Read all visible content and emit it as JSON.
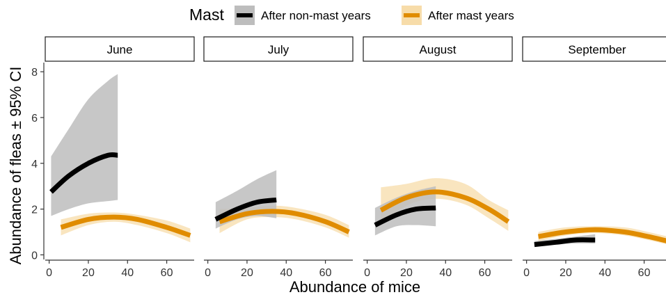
{
  "chart_data": {
    "type": "line",
    "legend": {
      "title": "Mast",
      "position": "top",
      "entries": [
        {
          "name": "After non-mast years",
          "color": "#000000",
          "ribbon": "#bdbdbd"
        },
        {
          "name": "After mast years",
          "color": "#e08c00",
          "ribbon": "#f7dca9"
        }
      ]
    },
    "xlabel": "Abundance of mice",
    "ylabel": "Abundance of fleas ± 95% CI",
    "xlim": [
      -2,
      74
    ],
    "ylim": [
      -0.2,
      8.4
    ],
    "xticks": [
      0,
      20,
      40,
      60
    ],
    "yticks": [
      0,
      2,
      4,
      6,
      8
    ],
    "grid": false,
    "facets": [
      {
        "title": "June",
        "series": [
          {
            "name": "After non-mast years",
            "color": "#000000",
            "ribbon_color": "#bdbdbd",
            "x": [
              1,
              10,
              20,
              30,
              35
            ],
            "y": [
              2.75,
              3.45,
              4.0,
              4.35,
              4.35
            ],
            "lower": [
              1.7,
              2.0,
              2.25,
              2.35,
              2.4
            ],
            "upper": [
              4.3,
              5.5,
              6.8,
              7.6,
              7.9
            ]
          },
          {
            "name": "After mast years",
            "color": "#e08c00",
            "ribbon_color": "#f7dca9",
            "x": [
              6,
              20,
              33,
              45,
              60,
              72
            ],
            "y": [
              1.2,
              1.55,
              1.65,
              1.55,
              1.2,
              0.85
            ],
            "lower": [
              0.85,
              1.3,
              1.45,
              1.3,
              0.95,
              0.55
            ],
            "upper": [
              1.55,
              1.8,
              1.85,
              1.75,
              1.5,
              1.15
            ]
          }
        ]
      },
      {
        "title": "July",
        "series": [
          {
            "name": "After non-mast years",
            "color": "#000000",
            "ribbon_color": "#bdbdbd",
            "x": [
              4,
              15,
              25,
              35
            ],
            "y": [
              1.55,
              2.0,
              2.3,
              2.4
            ],
            "lower": [
              1.15,
              1.55,
              1.7,
              1.6
            ],
            "upper": [
              2.3,
              2.8,
              3.3,
              3.7
            ]
          },
          {
            "name": "After mast years",
            "color": "#e08c00",
            "ribbon_color": "#f7dca9",
            "x": [
              6,
              20,
              33,
              45,
              60,
              72
            ],
            "y": [
              1.45,
              1.8,
              1.9,
              1.8,
              1.45,
              1.0
            ],
            "lower": [
              0.95,
              1.55,
              1.65,
              1.55,
              1.2,
              0.75
            ],
            "upper": [
              2.0,
              2.05,
              2.15,
              2.05,
              1.75,
              1.3
            ]
          }
        ]
      },
      {
        "title": "August",
        "series": [
          {
            "name": "After non-mast years",
            "color": "#000000",
            "ribbon_color": "#bdbdbd",
            "x": [
              4,
              15,
              25,
              35
            ],
            "y": [
              1.3,
              1.75,
              2.0,
              2.05
            ],
            "lower": [
              0.85,
              1.25,
              1.3,
              1.25
            ],
            "upper": [
              2.05,
              2.5,
              2.8,
              3.0
            ]
          },
          {
            "name": "After mast years",
            "color": "#e08c00",
            "ribbon_color": "#f7dca9",
            "x": [
              7,
              20,
              35,
              50,
              62,
              72
            ],
            "y": [
              1.95,
              2.5,
              2.75,
              2.5,
              2.0,
              1.45
            ],
            "lower": [
              1.3,
              2.15,
              2.45,
              2.2,
              1.6,
              1.05
            ],
            "upper": [
              2.95,
              3.1,
              3.35,
              3.1,
              2.4,
              1.95
            ]
          }
        ]
      },
      {
        "title": "September",
        "series": [
          {
            "name": "After non-mast years",
            "color": "#000000",
            "ribbon_color": "#bdbdbd",
            "x": [
              4,
              15,
              25,
              35
            ],
            "y": [
              0.45,
              0.55,
              0.65,
              0.65
            ],
            "lower": [
              0.35,
              0.45,
              0.5,
              0.5
            ],
            "upper": [
              0.6,
              0.7,
              0.8,
              0.9
            ]
          },
          {
            "name": "After mast years",
            "color": "#e08c00",
            "ribbon_color": "#f7dca9",
            "x": [
              6,
              20,
              35,
              50,
              62,
              72
            ],
            "y": [
              0.8,
              1.0,
              1.1,
              1.0,
              0.8,
              0.6
            ],
            "lower": [
              0.6,
              0.85,
              0.95,
              0.85,
              0.65,
              0.45
            ],
            "upper": [
              1.0,
              1.2,
              1.25,
              1.2,
              1.0,
              0.8
            ]
          }
        ]
      }
    ]
  }
}
